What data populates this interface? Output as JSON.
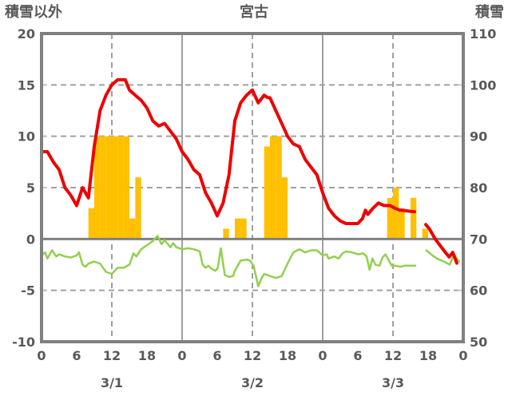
{
  "header": {
    "left_axis_title": "積雪以外",
    "chart_title": "宮古",
    "right_axis_title": "積雪"
  },
  "colors": {
    "background": "#ffffff",
    "red_line": "#ee0000",
    "green_line": "#92d050",
    "bar_fill": "#ffc000",
    "border": "#808080",
    "grid": "#a0a0a0",
    "zero_line": "#808080",
    "inner_tick": "#c6c6c6",
    "text": "#595959"
  },
  "chart_data": {
    "type": "line+bar composite",
    "title": "宮古",
    "x_axis": {
      "unit": "hour",
      "range": [
        0,
        72
      ],
      "tick_interval": 6,
      "tick_labels": [
        "0",
        "6",
        "12",
        "18",
        "0",
        "6",
        "12",
        "18",
        "0",
        "6",
        "12",
        "18",
        "0"
      ],
      "day_labels": [
        {
          "label": "3/1",
          "hour": 12
        },
        {
          "label": "3/2",
          "hour": 36
        },
        {
          "label": "3/3",
          "hour": 60
        }
      ]
    },
    "left_axis": {
      "title": "積雪以外",
      "range": [
        -10,
        20
      ],
      "ticks": [
        20,
        15,
        10,
        5,
        0,
        -5,
        -10
      ]
    },
    "right_axis": {
      "title": "積雪",
      "range": [
        50,
        110
      ],
      "ticks": [
        110,
        100,
        90,
        80,
        70,
        60,
        50
      ]
    },
    "gridlines": {
      "horizontal_dashed_left_values": [
        15,
        10,
        5,
        -5
      ],
      "vertical_dashed_hours": [
        12,
        36,
        60
      ],
      "vertical_solid_hours": [
        24,
        48
      ],
      "zero_line_left_value": 0
    },
    "legend": "none",
    "series": [
      {
        "id": "orange-bars",
        "type": "bar",
        "axis": "left",
        "color": "#ffc000",
        "bar_width_hours": 1,
        "values": [
          [
            8,
            3
          ],
          [
            9,
            10
          ],
          [
            10,
            10
          ],
          [
            11,
            10
          ],
          [
            12,
            10
          ],
          [
            13,
            10
          ],
          [
            14,
            10
          ],
          [
            15,
            2
          ],
          [
            16,
            6
          ],
          [
            31,
            1
          ],
          [
            33,
            2
          ],
          [
            34,
            2
          ],
          [
            38,
            9
          ],
          [
            39,
            10
          ],
          [
            40,
            10
          ],
          [
            41,
            6
          ],
          [
            59,
            4
          ],
          [
            60,
            5
          ],
          [
            61,
            3
          ],
          [
            63,
            4
          ],
          [
            65,
            1
          ]
        ]
      },
      {
        "id": "green-line",
        "type": "line",
        "axis": "left",
        "color": "#92d050",
        "segments": [
          [
            [
              0,
              -1.6
            ],
            [
              0.6,
              -1.3
            ],
            [
              1,
              -1.9
            ],
            [
              1.8,
              -1.1
            ],
            [
              2.5,
              -1.7
            ],
            [
              3,
              -1.5
            ],
            [
              4,
              -1.7
            ],
            [
              5,
              -1.8
            ],
            [
              6,
              -1.6
            ],
            [
              6.4,
              -1.3
            ],
            [
              7,
              -2.5
            ],
            [
              7.5,
              -2.7
            ],
            [
              8,
              -2.4
            ],
            [
              9,
              -2.2
            ],
            [
              10,
              -2.4
            ],
            [
              11,
              -3.2
            ],
            [
              12,
              -3.4
            ],
            [
              13,
              -2.8
            ],
            [
              14,
              -2.8
            ],
            [
              15,
              -2.5
            ],
            [
              15.7,
              -1.4
            ],
            [
              16.2,
              -1.7
            ],
            [
              17,
              -1.0
            ],
            [
              18,
              -0.6
            ],
            [
              19,
              -0.2
            ],
            [
              19.8,
              0.3
            ],
            [
              20.5,
              -0.5
            ],
            [
              21,
              -0.1
            ],
            [
              22,
              -0.8
            ],
            [
              22.5,
              -0.4
            ],
            [
              23,
              -0.8
            ],
            [
              24,
              -1.0
            ],
            [
              25,
              -0.9
            ],
            [
              26,
              -1.0
            ],
            [
              27,
              -1.2
            ],
            [
              27.5,
              -2.5
            ],
            [
              28,
              -2.8
            ],
            [
              28.5,
              -2.6
            ],
            [
              29,
              -2.9
            ],
            [
              29.7,
              -3.1
            ],
            [
              30.1,
              -2.8
            ],
            [
              30.6,
              -0.9
            ],
            [
              31.3,
              -3.5
            ],
            [
              32,
              -3.7
            ],
            [
              32.7,
              -3.6
            ],
            [
              33,
              -3.1
            ],
            [
              34,
              -2.1
            ],
            [
              35.1,
              -2.0
            ],
            [
              35.6,
              -2.1
            ],
            [
              36.2,
              -2.6
            ],
            [
              37,
              -4.6
            ],
            [
              37.5,
              -3.9
            ],
            [
              38,
              -3.4
            ],
            [
              39,
              -3.6
            ],
            [
              40,
              -3.8
            ],
            [
              41,
              -3.6
            ],
            [
              42,
              -2.4
            ],
            [
              43,
              -1.3
            ],
            [
              44,
              -1.0
            ],
            [
              45,
              -1.3
            ],
            [
              46,
              -1.1
            ],
            [
              47,
              -1.1
            ],
            [
              48,
              -1.6
            ],
            [
              48.7,
              -1.5
            ],
            [
              49,
              -1.9
            ],
            [
              50,
              -1.7
            ],
            [
              50.7,
              -1.9
            ],
            [
              51.4,
              -1.4
            ],
            [
              52,
              -1.2
            ],
            [
              53,
              -1.3
            ],
            [
              54,
              -1.5
            ],
            [
              54.9,
              -1.4
            ],
            [
              55.5,
              -1.7
            ],
            [
              56,
              -3.0
            ],
            [
              56.5,
              -1.9
            ],
            [
              57,
              -2.5
            ],
            [
              57.7,
              -2.6
            ],
            [
              58.2,
              -1.8
            ],
            [
              58.7,
              -1.5
            ],
            [
              59.5,
              -2.3
            ],
            [
              59.8,
              -2.6
            ],
            [
              60.5,
              -2.6
            ],
            [
              61.2,
              -2.7
            ],
            [
              62,
              -2.6
            ],
            [
              63,
              -2.6
            ],
            [
              63.8,
              -2.6
            ]
          ],
          [
            [
              65.7,
              -1.1
            ],
            [
              66.5,
              -1.5
            ],
            [
              67.5,
              -1.9
            ],
            [
              68.7,
              -2.2
            ],
            [
              69.7,
              -2.5
            ],
            [
              70.4,
              -1.5
            ],
            [
              71.3,
              -2.2
            ]
          ]
        ]
      },
      {
        "id": "red-line",
        "type": "line",
        "axis": "right",
        "color": "#ee0000",
        "segments": [
          [
            [
              0,
              87
            ],
            [
              1,
              87
            ],
            [
              2,
              85
            ],
            [
              3,
              83.5
            ],
            [
              4,
              80
            ],
            [
              5,
              78.5
            ],
            [
              6,
              76.5
            ],
            [
              7,
              80
            ],
            [
              8,
              78
            ],
            [
              9,
              88
            ],
            [
              10,
              95
            ],
            [
              11,
              98
            ],
            [
              12,
              100
            ],
            [
              13,
              101
            ],
            [
              14,
              101
            ],
            [
              14.3,
              101
            ],
            [
              15,
              99
            ],
            [
              16,
              98
            ],
            [
              17,
              97
            ],
            [
              18,
              95.5
            ],
            [
              19,
              93
            ],
            [
              20,
              92
            ],
            [
              21,
              92.5
            ],
            [
              22,
              91
            ],
            [
              23,
              89.5
            ],
            [
              24,
              87
            ],
            [
              25,
              85.5
            ],
            [
              26,
              83.5
            ],
            [
              27,
              82.5
            ],
            [
              28,
              79
            ],
            [
              29,
              77
            ],
            [
              30,
              74.5
            ],
            [
              31,
              77
            ],
            [
              32,
              82.5
            ],
            [
              33,
              93
            ],
            [
              34,
              96.5
            ],
            [
              35,
              98
            ],
            [
              36,
              99
            ],
            [
              37,
              96.5
            ],
            [
              38,
              98
            ],
            [
              38.6,
              97.5
            ],
            [
              39,
              97.5
            ],
            [
              40,
              95
            ],
            [
              41,
              92.5
            ],
            [
              42,
              90
            ],
            [
              43,
              88.5
            ],
            [
              44,
              88
            ],
            [
              45,
              85.5
            ],
            [
              46,
              84
            ],
            [
              47,
              82.5
            ],
            [
              48,
              79
            ],
            [
              49,
              76
            ],
            [
              50,
              74.5
            ],
            [
              51,
              73.5
            ],
            [
              52,
              73
            ],
            [
              53,
              73
            ],
            [
              54,
              73
            ],
            [
              54.8,
              74
            ],
            [
              55.3,
              75.6
            ],
            [
              55.7,
              74.8
            ],
            [
              56.6,
              76
            ],
            [
              57.5,
              77
            ],
            [
              58.5,
              76.5
            ],
            [
              59.5,
              76.5
            ],
            [
              60.3,
              76
            ],
            [
              61.2,
              75.6
            ],
            [
              62.1,
              75.5
            ],
            [
              63.7,
              75.3
            ]
          ],
          [
            [
              65.6,
              72.8
            ],
            [
              66.2,
              72
            ],
            [
              67.2,
              70
            ],
            [
              68.2,
              68.5
            ],
            [
              69,
              67.3
            ],
            [
              69.6,
              66.5
            ],
            [
              70.2,
              67.4
            ],
            [
              70.9,
              65.3
            ]
          ]
        ]
      }
    ]
  }
}
